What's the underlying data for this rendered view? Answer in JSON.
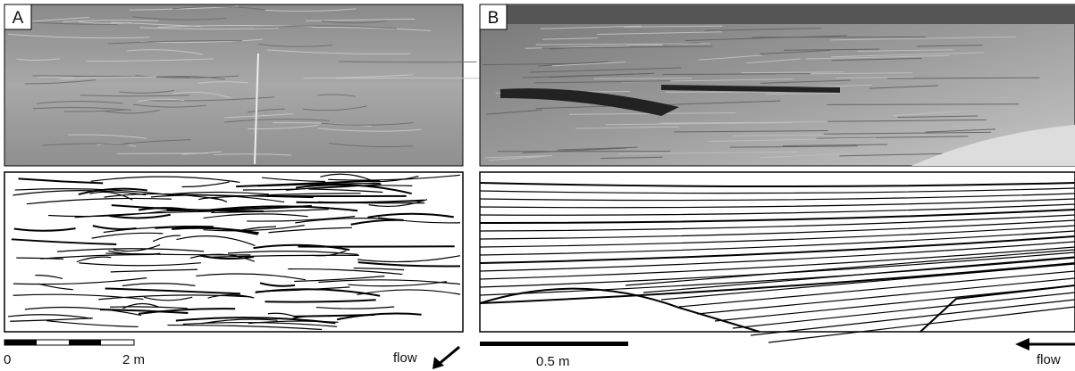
{
  "panels": [
    {
      "label": "A",
      "scale": {
        "start": "0",
        "end": "2 m"
      },
      "flow": "flow"
    },
    {
      "label": "B",
      "scale": {
        "end": "0.5 m"
      },
      "flow": "flow"
    }
  ]
}
